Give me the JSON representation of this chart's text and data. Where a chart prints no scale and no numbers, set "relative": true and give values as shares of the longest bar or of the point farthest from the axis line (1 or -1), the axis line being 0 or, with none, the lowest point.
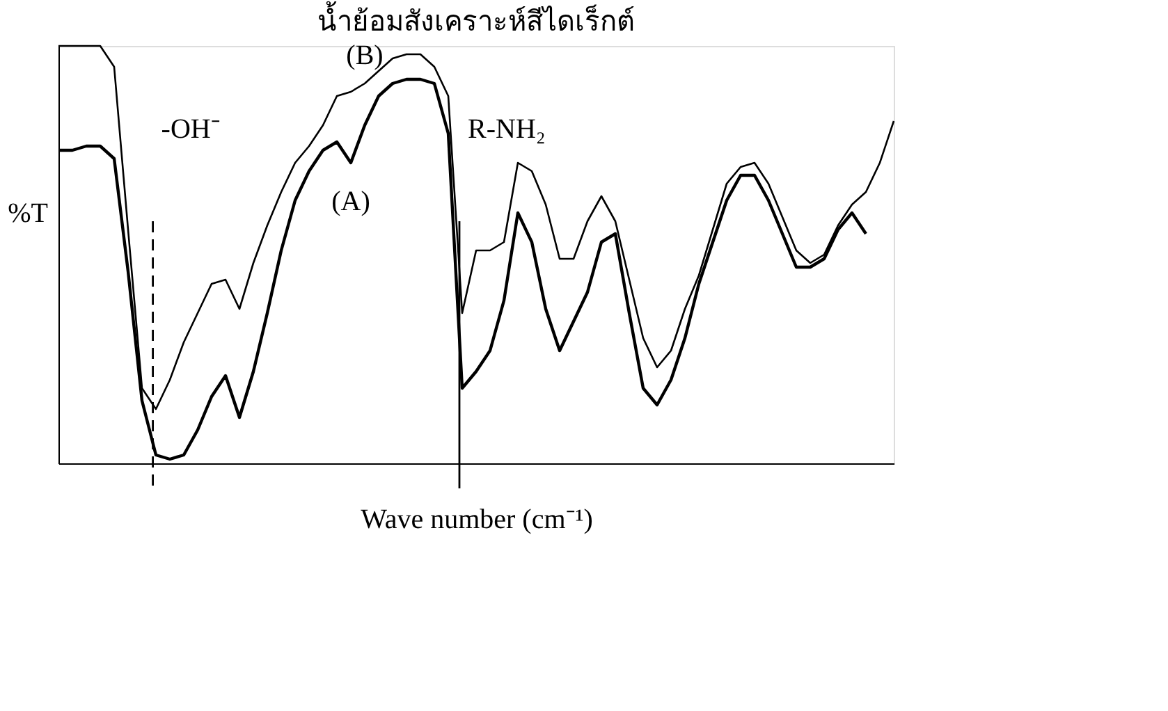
{
  "chart_data": {
    "type": "line",
    "title": "น้ำย้อมสังเคราะห์สีไดเร็กต์",
    "xlabel": "Wave number (cm⁻¹)",
    "ylabel": "%T",
    "relative": true,
    "categories": [
      null,
      null,
      null,
      null,
      null,
      null,
      null,
      null,
      null,
      null,
      null,
      null,
      null,
      null,
      null,
      null,
      null,
      null,
      null,
      null,
      null,
      null,
      null,
      null,
      null,
      null,
      null,
      null,
      null,
      null,
      null,
      null,
      null,
      null,
      null,
      null,
      null,
      null,
      null,
      null,
      null,
      null,
      null,
      null,
      null,
      null,
      null,
      null,
      null,
      null,
      null,
      null,
      null,
      null,
      null,
      null,
      null,
      null,
      null,
      null,
      null
    ],
    "series": [
      {
        "name": "(A)",
        "color": "#000000",
        "values": [
          0.75,
          0.75,
          0.76,
          0.76,
          0.73,
          0.46,
          0.15,
          0.02,
          0.01,
          0.02,
          0.08,
          0.16,
          0.21,
          0.11,
          0.22,
          0.36,
          0.51,
          0.63,
          0.7,
          0.75,
          0.77,
          0.72,
          0.81,
          0.88,
          0.91,
          0.92,
          0.92,
          0.91,
          0.79,
          0.18,
          0.22,
          0.27,
          0.39,
          0.6,
          0.53,
          0.37,
          0.27,
          0.34,
          0.41,
          0.53,
          0.55,
          0.36,
          0.18,
          0.14,
          0.2,
          0.3,
          0.43,
          0.53,
          0.63,
          0.69,
          0.69,
          0.63,
          0.55,
          0.47,
          0.47,
          0.49,
          0.56,
          0.6,
          0.55,
          null,
          null
        ]
      },
      {
        "name": "(B)",
        "color": "#000000",
        "values": [
          1.0,
          1.0,
          1.0,
          1.0,
          0.95,
          0.56,
          0.18,
          0.13,
          0.2,
          0.29,
          0.36,
          0.43,
          0.44,
          0.37,
          0.48,
          0.57,
          0.65,
          0.72,
          0.76,
          0.81,
          0.88,
          0.89,
          0.91,
          0.94,
          0.97,
          0.98,
          0.98,
          0.95,
          0.88,
          0.36,
          0.51,
          0.51,
          0.53,
          0.72,
          0.7,
          0.62,
          0.49,
          0.49,
          0.58,
          0.64,
          0.58,
          0.44,
          0.3,
          0.23,
          0.27,
          0.37,
          0.45,
          0.56,
          0.67,
          0.71,
          0.72,
          0.67,
          0.59,
          0.51,
          0.48,
          0.5,
          0.57,
          0.62,
          0.65,
          0.72,
          0.82
        ]
      }
    ],
    "annotations": [
      "-OH⁻",
      "R-NH₂"
    ],
    "marker": "none",
    "line_style": "solid"
  }
}
